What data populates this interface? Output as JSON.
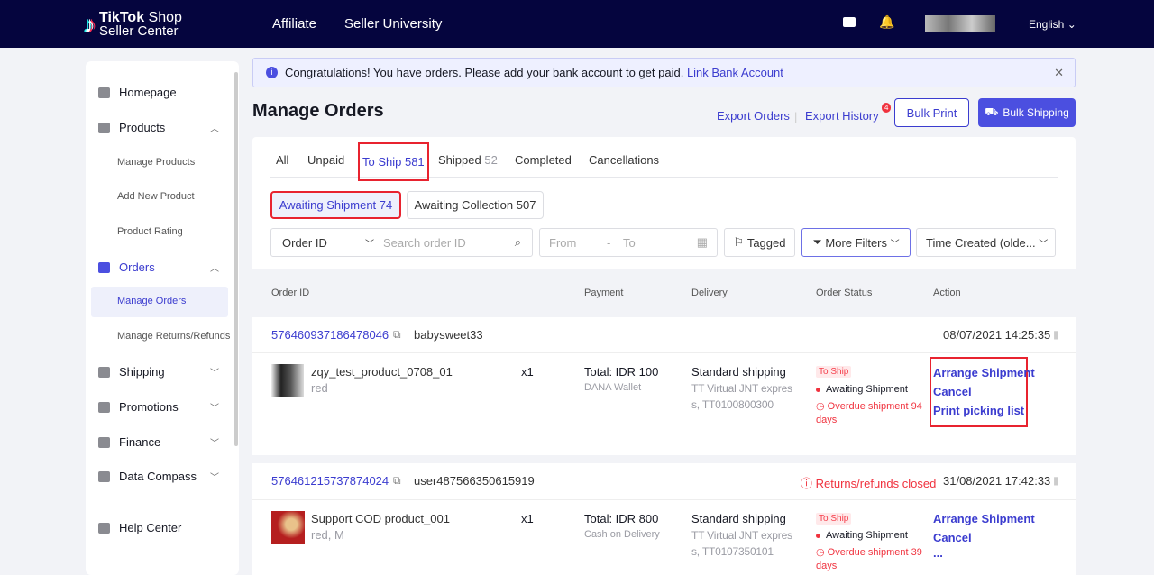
{
  "header": {
    "logo_line1_bold": "TikTok",
    "logo_line1": " Shop",
    "logo_line2": "Seller Center",
    "nav": [
      "Affiliate",
      "Seller University"
    ],
    "language": "English"
  },
  "sidebar": {
    "items": [
      {
        "label": "Homepage"
      },
      {
        "label": "Products"
      },
      {
        "label": "Manage Products"
      },
      {
        "label": "Add New Product"
      },
      {
        "label": "Product Rating"
      },
      {
        "label": "Orders"
      },
      {
        "label": "Manage Orders"
      },
      {
        "label": "Manage Returns/Refunds"
      },
      {
        "label": "Shipping"
      },
      {
        "label": "Promotions"
      },
      {
        "label": "Finance"
      },
      {
        "label": "Data Compass"
      },
      {
        "label": "Help Center"
      }
    ]
  },
  "banner": {
    "text": "Congratulations! You have orders. Please add your bank account to get paid.",
    "link": "Link Bank Account"
  },
  "page": {
    "title": "Manage Orders",
    "export_orders": "Export Orders",
    "export_history": "Export History",
    "export_badge": "4",
    "bulk_print": "Bulk Print",
    "bulk_shipping": "Bulk Shipping"
  },
  "tabs": {
    "all": "All",
    "unpaid": "Unpaid",
    "to_ship": "To Ship 581",
    "shipped": "Shipped",
    "shipped_count": "52",
    "completed": "Completed",
    "cancellations": "Cancellations"
  },
  "subtabs": {
    "awaiting_shipment": "Awaiting Shipment 74",
    "awaiting_collection": "Awaiting Collection 507"
  },
  "filters": {
    "order_id": "Order ID",
    "search_placeholder": "Search order ID",
    "from": "From",
    "dash": "-",
    "to": "To",
    "tagged": "Tagged",
    "more_filters": "More Filters",
    "sort": "Time Created (olde..."
  },
  "table": {
    "headers": [
      "Order ID",
      "Payment",
      "Delivery",
      "Order Status",
      "Action"
    ]
  },
  "orders": [
    {
      "id": "576460937186478046",
      "buyer": "babysweet33",
      "notice": "",
      "time": "08/07/2021 14:25:35",
      "product": "zqy_test_product_0708_01",
      "variant": "red",
      "qty": "x1",
      "total": "Total: IDR 100",
      "method": "DANA Wallet",
      "ship": "Standard shipping",
      "carrier1": "TT Virtual JNT expres",
      "carrier2": "s, TT0100800300",
      "status_badge": "To Ship",
      "status": "Awaiting Shipment",
      "overdue1": "Overdue shipment 94",
      "overdue2": "days",
      "actions": [
        "Arrange Shipment",
        "Cancel",
        "Print picking list"
      ]
    },
    {
      "id": "576461215737874024",
      "buyer": "user487566350615919",
      "notice": "Returns/refunds closed",
      "time": "31/08/2021 17:42:33",
      "product": "Support COD product_001",
      "variant": "red, M",
      "qty": "x1",
      "total": "Total: IDR 800",
      "method": "Cash on Delivery",
      "ship": "Standard shipping",
      "carrier1": "TT Virtual JNT expres",
      "carrier2": "s, TT0107350101",
      "status_badge": "To Ship",
      "status": "Awaiting Shipment",
      "overdue1": "Overdue shipment 39",
      "overdue2": "days",
      "actions": [
        "Arrange Shipment",
        "Cancel",
        "..."
      ]
    }
  ]
}
